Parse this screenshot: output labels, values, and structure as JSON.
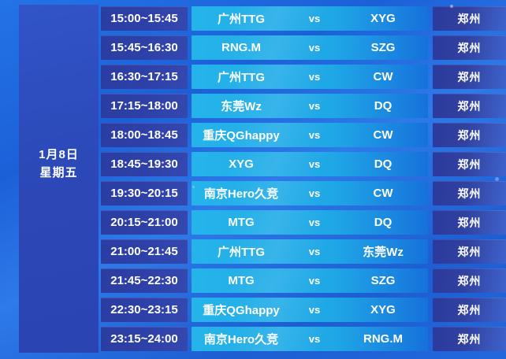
{
  "schedule": {
    "date": {
      "line1": "1月8日",
      "line2": "星期五"
    },
    "rows": [
      {
        "time": "15:00~15:45",
        "team1": "广州TTG",
        "vs": "vs",
        "team2": "XYG",
        "city": "郑州"
      },
      {
        "time": "15:45~16:30",
        "team1": "RNG.M",
        "vs": "vs",
        "team2": "SZG",
        "city": "郑州"
      },
      {
        "time": "16:30~17:15",
        "team1": "广州TTG",
        "vs": "vs",
        "team2": "CW",
        "city": "郑州"
      },
      {
        "time": "17:15~18:00",
        "team1": "东莞Wz",
        "vs": "vs",
        "team2": "DQ",
        "city": "郑州"
      },
      {
        "time": "18:00~18:45",
        "team1": "重庆QGhappy",
        "vs": "vs",
        "team2": "CW",
        "city": "郑州"
      },
      {
        "time": "18:45~19:30",
        "team1": "XYG",
        "vs": "vs",
        "team2": "DQ",
        "city": "郑州"
      },
      {
        "time": "19:30~20:15",
        "team1": "南京Hero久竞",
        "vs": "vs",
        "team2": "CW",
        "city": "郑州"
      },
      {
        "time": "20:15~21:00",
        "team1": "MTG",
        "vs": "vs",
        "team2": "DQ",
        "city": "郑州"
      },
      {
        "time": "21:00~21:45",
        "team1": "广州TTG",
        "vs": "vs",
        "team2": "东莞Wz",
        "city": "郑州"
      },
      {
        "time": "21:45~22:30",
        "team1": "MTG",
        "vs": "vs",
        "team2": "SZG",
        "city": "郑州"
      },
      {
        "time": "22:30~23:15",
        "team1": "重庆QGhappy",
        "vs": "vs",
        "team2": "XYG",
        "city": "郑州"
      },
      {
        "time": "23:15~24:00",
        "team1": "南京Hero久竞",
        "vs": "vs",
        "team2": "RNG.M",
        "city": "郑州"
      }
    ]
  },
  "colors": {
    "background_blue": "#2068dd",
    "date_panel": "#2c49b8",
    "time_cell": "#2e41a8",
    "match_cell_start": "#25b4ea",
    "match_cell_end": "#1571da",
    "city_cell_start": "#2a3a9e",
    "city_cell_end": "#3e63cd",
    "text": "#ffffff"
  }
}
